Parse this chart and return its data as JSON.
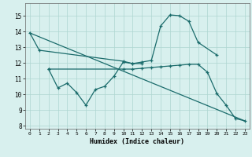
{
  "xlabel": "Humidex (Indice chaleur)",
  "xlim": [
    -0.5,
    23.5
  ],
  "ylim": [
    7.8,
    15.8
  ],
  "yticks": [
    8,
    9,
    10,
    11,
    12,
    13,
    14,
    15
  ],
  "xticks": [
    0,
    1,
    2,
    3,
    4,
    5,
    6,
    7,
    8,
    9,
    10,
    11,
    12,
    13,
    14,
    15,
    16,
    17,
    18,
    19,
    20,
    21,
    22,
    23
  ],
  "background_color": "#d8f0ee",
  "grid_color": "#aed6d0",
  "line_color": "#1a6b6b",
  "line1_x": [
    0,
    1,
    10,
    11,
    12,
    13,
    14,
    15,
    16,
    17,
    18,
    20
  ],
  "line1_y": [
    13.9,
    12.8,
    12.1,
    11.95,
    12.05,
    12.15,
    14.35,
    15.05,
    15.0,
    14.65,
    13.3,
    12.5
  ],
  "line2_x": [
    2,
    3,
    4,
    5,
    6,
    7,
    8,
    9,
    10,
    11,
    12
  ],
  "line2_y": [
    11.6,
    10.4,
    10.7,
    10.1,
    9.3,
    10.3,
    10.5,
    11.15,
    12.05,
    11.95,
    11.95
  ],
  "line3_x": [
    2,
    10,
    11,
    12,
    13,
    14,
    15,
    16,
    17,
    18,
    19,
    20,
    21,
    22,
    23
  ],
  "line3_y": [
    11.6,
    11.6,
    11.6,
    11.65,
    11.7,
    11.75,
    11.8,
    11.85,
    11.9,
    11.9,
    11.4,
    10.05,
    9.3,
    8.45,
    8.3
  ],
  "line4_x": [
    0,
    23
  ],
  "line4_y": [
    13.9,
    8.3
  ]
}
